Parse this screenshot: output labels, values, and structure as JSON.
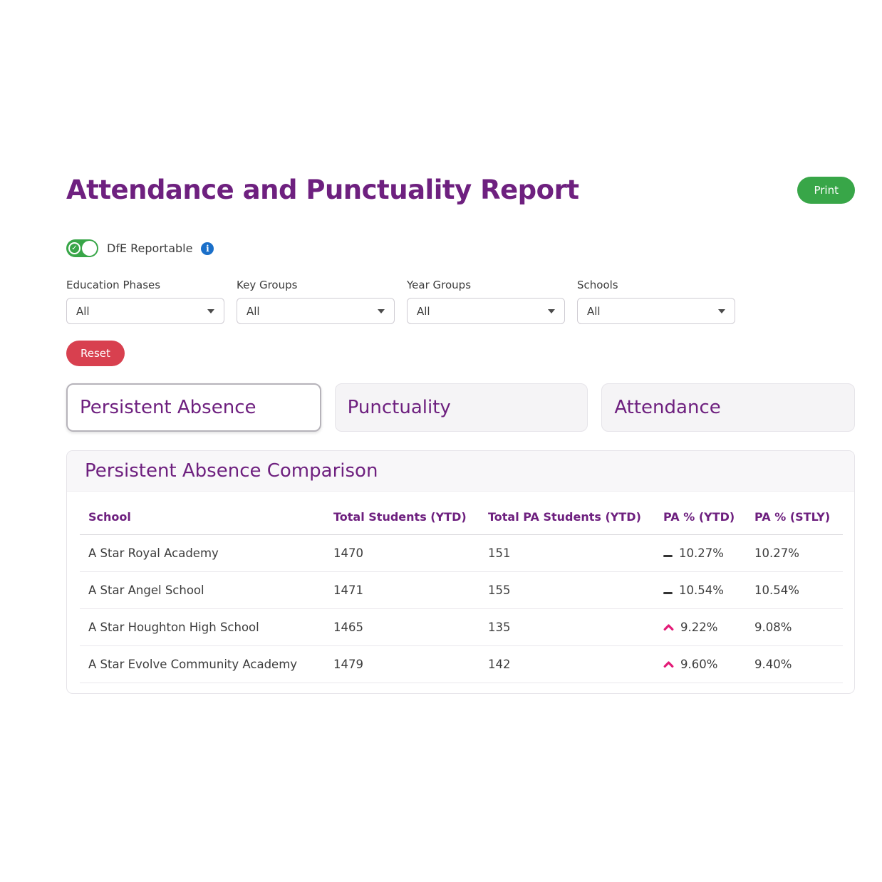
{
  "page": {
    "title": "Attendance and Punctuality Report"
  },
  "header": {
    "print_label": "Print"
  },
  "toggle": {
    "label": "DfE Reportable",
    "state": "on"
  },
  "filters": [
    {
      "id": "education-phases",
      "label": "Education Phases",
      "value": "All"
    },
    {
      "id": "key-groups",
      "label": "Key Groups",
      "value": "All"
    },
    {
      "id": "year-groups",
      "label": "Year Groups",
      "value": "All"
    },
    {
      "id": "schools",
      "label": "Schools",
      "value": "All"
    }
  ],
  "reset_label": "Reset",
  "tabs": [
    {
      "id": "persistent-absence",
      "label": "Persistent Absence",
      "selected": true
    },
    {
      "id": "punctuality",
      "label": "Punctuality",
      "selected": false
    },
    {
      "id": "attendance",
      "label": "Attendance",
      "selected": false
    }
  ],
  "panel": {
    "title": "Persistent Absence Comparison",
    "columns": [
      "School",
      "Total Students (YTD)",
      "Total PA Students (YTD)",
      "PA % (YTD)",
      "PA % (STLY)"
    ],
    "rows": [
      {
        "school": "A Star Royal Academy",
        "total_students": "1470",
        "total_pa_students": "151",
        "pa_ytd": "10.27%",
        "pa_stly": "10.27%",
        "trend": "flat"
      },
      {
        "school": "A Star Angel School",
        "total_students": "1471",
        "total_pa_students": "155",
        "pa_ytd": "10.54%",
        "pa_stly": "10.54%",
        "trend": "flat"
      },
      {
        "school": "A Star Houghton High School",
        "total_students": "1465",
        "total_pa_students": "135",
        "pa_ytd": "9.22%",
        "pa_stly": "9.08%",
        "trend": "up"
      },
      {
        "school": "A Star Evolve Community Academy",
        "total_students": "1479",
        "total_pa_students": "142",
        "pa_ytd": "9.60%",
        "pa_stly": "9.40%",
        "trend": "up"
      }
    ]
  },
  "colors": {
    "purple": "#6e207f",
    "green": "#38a648",
    "red": "#d8404f",
    "pink": "#e31b77",
    "info_blue": "#1a6fc9"
  }
}
